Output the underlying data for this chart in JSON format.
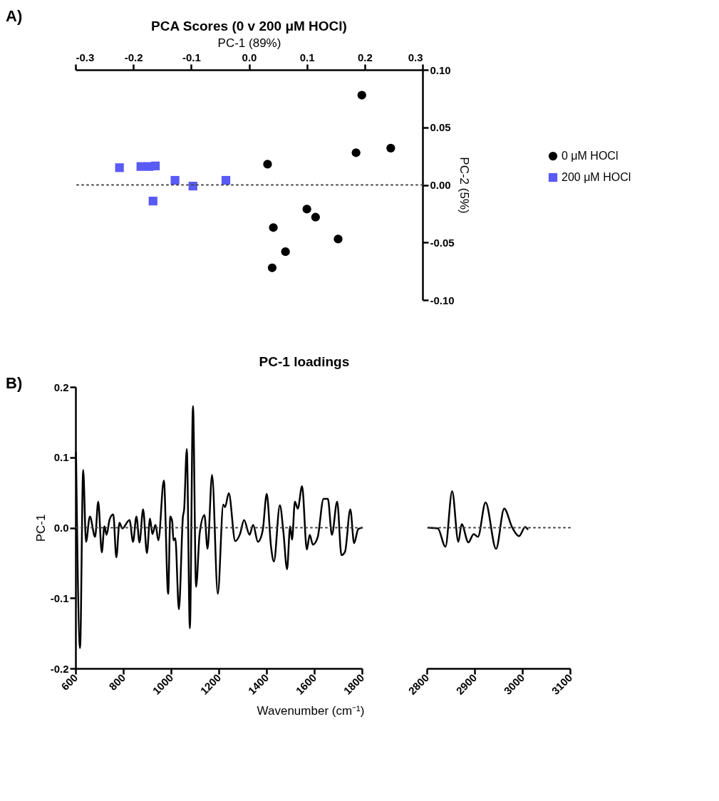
{
  "chart_data": [
    {
      "type": "scatter",
      "title": "PCA Scores (0 v 200 μM HOCl)",
      "xlabel": "PC-1 (89%)",
      "ylabel": "PC-2 (5%)",
      "annotations": [
        "A)"
      ],
      "legend": "right",
      "xlim": [
        -0.3,
        0.3
      ],
      "xticks": [
        -0.3,
        -0.2,
        -0.1,
        {
          "value": 0,
          "label": "0.0"
        },
        0.1,
        0.2,
        0.3
      ],
      "ylim": [
        -0.1,
        0.1
      ],
      "yticks": [
        {
          "value": -0.1,
          "label": "-0.10"
        },
        -0.05,
        {
          "value": 0,
          "label": "0.00"
        },
        0.05,
        {
          "value": 0.1,
          "label": "0.10"
        }
      ],
      "ref_lines": [
        {
          "axis": "y",
          "value": 0,
          "line_style": "dotted"
        }
      ],
      "series": [
        {
          "name": "0 μM HOCl",
          "color": "#000000",
          "marker": "circle",
          "x": [
            0.195,
            0.185,
            0.245,
            0.032,
            0.1,
            0.115,
            0.042,
            0.154,
            0.063,
            0.04
          ],
          "values": [
            0.078,
            0.028,
            0.032,
            0.018,
            -0.021,
            -0.028,
            -0.037,
            -0.047,
            -0.058,
            -0.072
          ]
        },
        {
          "name": "200 μM HOCl",
          "color": "#5a5af5",
          "marker": "square",
          "x": [
            -0.224,
            -0.187,
            -0.173,
            -0.162,
            -0.166,
            -0.128,
            -0.097,
            -0.04
          ],
          "values": [
            0.015,
            0.016,
            0.016,
            0.0165,
            -0.014,
            0.004,
            -0.001,
            0.004
          ]
        }
      ]
    },
    {
      "type": "line",
      "title": "PC-1 loadings",
      "xlabel": "Wavenumber (cm⁻¹)",
      "ylabel": "PC-1",
      "annotations": [
        "B)"
      ],
      "xlim": [
        600,
        1800
      ],
      "xticks": [
        600,
        800,
        1000,
        1200,
        1400,
        1600,
        1800
      ],
      "ylim": [
        -0.2,
        0.2
      ],
      "yticks": [
        -0.2,
        -0.1,
        {
          "value": 0,
          "label": "0.0"
        },
        0.1,
        0.2
      ],
      "ref_lines": [
        {
          "axis": "y",
          "value": 0,
          "line_style": "dotted"
        }
      ],
      "series": [
        {
          "color": "#000000",
          "x": [
            602,
            619,
            632,
            644,
            660,
            682,
            695,
            710,
            721,
            730,
            743,
            758,
            771,
            784,
            796,
            826,
            841,
            855,
            868,
            883,
            899,
            912,
            922,
            935,
            947,
            970,
            988,
            997,
            1005,
            1010,
            1018,
            1033,
            1050,
            1055,
            1066,
            1079,
            1092,
            1105,
            1120,
            1140,
            1153,
            1172,
            1196,
            1219,
            1226,
            1242,
            1269,
            1289,
            1306,
            1329,
            1344,
            1364,
            1384,
            1401,
            1419,
            1431,
            1456,
            1471,
            1486,
            1499,
            1507,
            1519,
            1531,
            1549,
            1569,
            1581,
            1594,
            1614,
            1639,
            1657,
            1674,
            1696,
            1714,
            1729,
            1751,
            1767,
            1784,
            1800
          ],
          "values": [
            0.107,
            -0.171,
            0.082,
            -0.02,
            0.016,
            -0.013,
            0.037,
            -0.035,
            0.002,
            -0.01,
            0.012,
            0.019,
            -0.042,
            0.007,
            -0.001,
            0.011,
            -0.02,
            0.016,
            -0.021,
            0.026,
            -0.036,
            0.013,
            -0.009,
            0.004,
            -0.018,
            0.067,
            -0.094,
            0.016,
            0.009,
            -0.018,
            -0.015,
            -0.116,
            0.016,
            0.026,
            0.112,
            -0.143,
            0.173,
            -0.084,
            -0.008,
            0.018,
            -0.03,
            0.075,
            -0.094,
            0.033,
            0.029,
            0.049,
            -0.019,
            -0.009,
            0.011,
            -0.01,
            0.004,
            -0.02,
            -0.004,
            0.048,
            -0.027,
            -0.048,
            0.032,
            -0.007,
            -0.059,
            0.002,
            -0.017,
            0.037,
            0.027,
            0.059,
            -0.031,
            -0.01,
            -0.024,
            -0.014,
            0.041,
            0.041,
            -0.01,
            0.037,
            -0.039,
            -0.034,
            0.026,
            -0.022,
            -0.002,
            0
          ]
        }
      ]
    },
    {
      "type": "line",
      "tick_labels": "x",
      "xlim": [
        2800,
        3100
      ],
      "xticks": [
        2800,
        2900,
        3000,
        3100
      ],
      "ylim": [
        -0.2,
        0.2
      ],
      "ref_lines": [
        {
          "axis": "y",
          "value": 0,
          "line_style": "dotted"
        }
      ],
      "series": [
        {
          "color": "#000000",
          "x": [
            2803,
            2823,
            2839,
            2853,
            2866,
            2873,
            2887,
            2898,
            2907,
            2923,
            2945,
            2962,
            2979,
            2993,
            3006,
            3011
          ],
          "values": [
            0,
            -0.001,
            -0.027,
            0.052,
            -0.02,
            0.005,
            -0.021,
            -0.009,
            -0.013,
            0.036,
            -0.03,
            0.027,
            0,
            -0.012,
            0.001,
            -0.002
          ]
        }
      ]
    }
  ]
}
